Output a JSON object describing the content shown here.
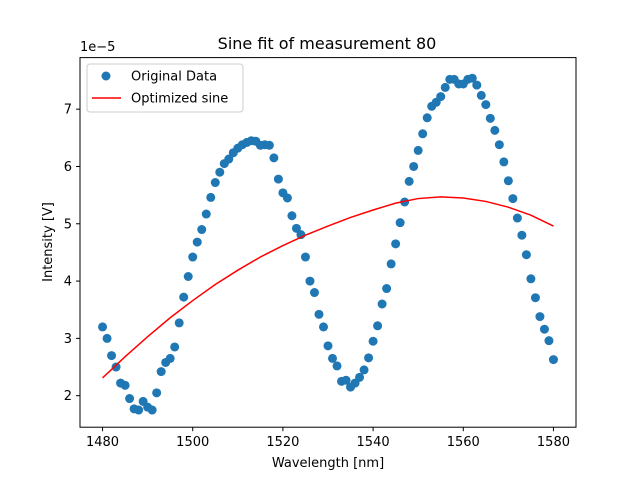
{
  "chart_data": {
    "type": "scatter",
    "title": "Sine fit of measurement 80",
    "xlabel": "Wavelength [nm]",
    "ylabel": "Intensity [V]",
    "y_scale_label": "1e−5",
    "xlim": [
      1475,
      1585
    ],
    "ylim": [
      1.45,
      7.9
    ],
    "x_ticks": [
      1480,
      1500,
      1520,
      1540,
      1560,
      1580
    ],
    "y_ticks": [
      2,
      3,
      4,
      5,
      6,
      7
    ],
    "grid": false,
    "legend_position": "upper-left",
    "series": [
      {
        "name": "Original Data",
        "kind": "scatter",
        "color": "#1f77b4",
        "x": [
          1480,
          1481,
          1482,
          1483,
          1484,
          1485,
          1486,
          1487,
          1488,
          1489,
          1490,
          1491,
          1492,
          1493,
          1494,
          1495,
          1496,
          1497,
          1498,
          1499,
          1500,
          1501,
          1502,
          1503,
          1504,
          1505,
          1506,
          1507,
          1508,
          1509,
          1510,
          1511,
          1512,
          1513,
          1514,
          1515,
          1516,
          1517,
          1518,
          1519,
          1520,
          1521,
          1522,
          1523,
          1524,
          1525,
          1526,
          1527,
          1528,
          1529,
          1530,
          1531,
          1532,
          1533,
          1534,
          1535,
          1536,
          1537,
          1538,
          1539,
          1540,
          1541,
          1542,
          1543,
          1544,
          1545,
          1546,
          1547,
          1548,
          1549,
          1550,
          1551,
          1552,
          1553,
          1554,
          1555,
          1556,
          1557,
          1558,
          1559,
          1560,
          1561,
          1562,
          1563,
          1564,
          1565,
          1566,
          1567,
          1568,
          1569,
          1570,
          1571,
          1572,
          1573,
          1574,
          1575,
          1576,
          1577,
          1578,
          1579,
          1580
        ],
        "y": [
          3.2,
          3.0,
          2.7,
          2.5,
          2.22,
          2.18,
          1.95,
          1.77,
          1.75,
          1.9,
          1.8,
          1.75,
          2.05,
          2.42,
          2.58,
          2.65,
          2.85,
          3.27,
          3.72,
          4.08,
          4.42,
          4.68,
          4.9,
          5.17,
          5.46,
          5.72,
          5.9,
          6.05,
          6.13,
          6.24,
          6.32,
          6.38,
          6.42,
          6.45,
          6.44,
          6.37,
          6.38,
          6.37,
          6.15,
          5.78,
          5.54,
          5.45,
          5.14,
          4.92,
          4.81,
          4.42,
          4.0,
          3.8,
          3.42,
          3.2,
          2.87,
          2.65,
          2.52,
          2.25,
          2.27,
          2.15,
          2.22,
          2.32,
          2.45,
          2.66,
          2.95,
          3.22,
          3.6,
          3.87,
          4.3,
          4.65,
          5.02,
          5.38,
          5.74,
          6.0,
          6.28,
          6.57,
          6.85,
          7.05,
          7.12,
          7.22,
          7.38,
          7.52,
          7.52,
          7.44,
          7.44,
          7.52,
          7.54,
          7.42,
          7.24,
          7.08,
          6.84,
          6.63,
          6.38,
          6.08,
          5.75,
          5.44,
          5.1,
          4.8,
          4.46,
          4.04,
          3.71,
          3.38,
          3.16,
          2.96,
          2.63
        ]
      },
      {
        "name": "Optimized sine",
        "kind": "line",
        "color": "#ff0000",
        "x": [
          1480,
          1485,
          1490,
          1495,
          1500,
          1505,
          1510,
          1515,
          1520,
          1525,
          1530,
          1535,
          1540,
          1545,
          1550,
          1555,
          1560,
          1565,
          1570,
          1575,
          1580
        ],
        "y": [
          2.31,
          2.68,
          3.03,
          3.36,
          3.66,
          3.94,
          4.19,
          4.42,
          4.62,
          4.8,
          4.96,
          5.11,
          5.24,
          5.36,
          5.44,
          5.47,
          5.45,
          5.39,
          5.29,
          5.15,
          4.96
        ]
      }
    ]
  }
}
